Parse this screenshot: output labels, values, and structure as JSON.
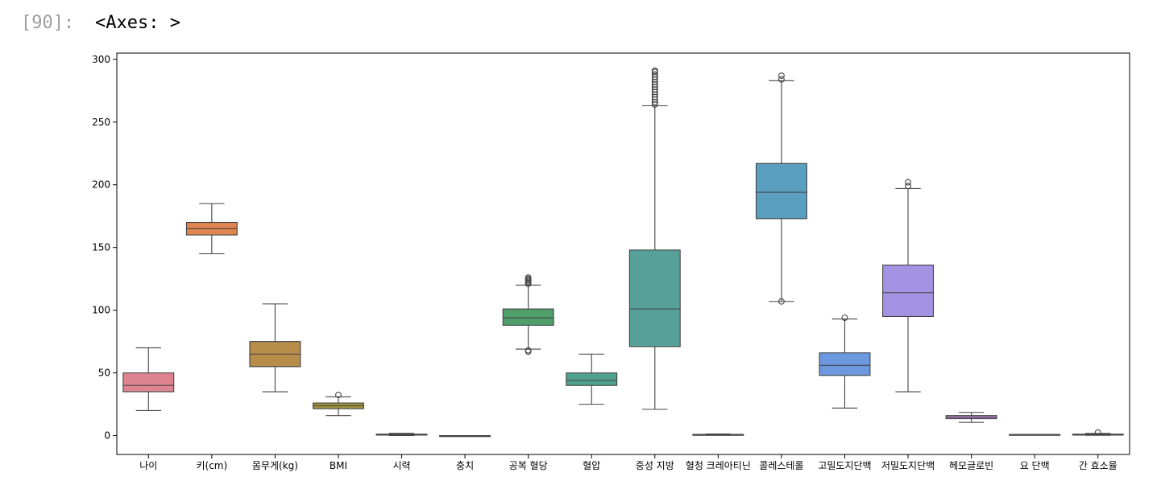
{
  "cell": {
    "prompt": "[90]:",
    "output": "<Axes: >"
  },
  "chart_data": {
    "type": "boxplot",
    "ylim": [
      -15,
      305
    ],
    "yticks": [
      0,
      50,
      100,
      150,
      200,
      250,
      300
    ],
    "grid": false,
    "categories": [
      "나이",
      "키(cm)",
      "몸무게(kg)",
      "BMI",
      "시력",
      "충치",
      "공복 혈당",
      "혈압",
      "중성 지방",
      "혈청 크레아티닌",
      "콜레스테롤",
      "고밀도지단백",
      "저밀도지단백",
      "헤모글로빈",
      "요 단백",
      "간 효소율"
    ],
    "boxes": [
      {
        "whislo": 20,
        "q1": 35,
        "med": 40,
        "q3": 50,
        "whishi": 70,
        "fliers": [],
        "color": "#dd8490"
      },
      {
        "whislo": 145,
        "q1": 160,
        "med": 165,
        "q3": 170,
        "whishi": 185,
        "fliers": [],
        "color": "#e0854f"
      },
      {
        "whislo": 35,
        "q1": 55,
        "med": 65,
        "q3": 75,
        "whishi": 105,
        "fliers": [],
        "color": "#b88d4a"
      },
      {
        "whislo": 16,
        "q1": 21.5,
        "med": 23.8,
        "q3": 26,
        "whishi": 31,
        "fliers": [
          32.5
        ],
        "color": "#a0933f"
      },
      {
        "whislo": 0.1,
        "q1": 0.8,
        "med": 1.0,
        "q3": 1.2,
        "whishi": 1.9,
        "fliers": [],
        "color": "#8a9a3e"
      },
      {
        "whislo": 0,
        "q1": 0,
        "med": 0,
        "q3": 0,
        "whishi": 0,
        "fliers": [],
        "color": "#4aa25d"
      },
      {
        "whislo": 69,
        "q1": 88,
        "med": 94,
        "q3": 101,
        "whishi": 120,
        "fliers": [
          67,
          68,
          121,
          122,
          123,
          124,
          125,
          126
        ],
        "color": "#4f9f6b"
      },
      {
        "whislo": 25,
        "q1": 40,
        "med": 44,
        "q3": 50,
        "whishi": 65,
        "fliers": [],
        "color": "#4fa18d"
      },
      {
        "whislo": 21,
        "q1": 71,
        "med": 101,
        "q3": 148,
        "whishi": 263,
        "fliers": [
          264,
          266,
          268,
          270,
          272,
          274,
          276,
          278,
          280,
          282,
          284,
          286,
          288,
          290,
          291
        ],
        "color": "#57a09a"
      },
      {
        "whislo": 0.4,
        "q1": 0.7,
        "med": 0.8,
        "q3": 1.0,
        "whishi": 1.3,
        "fliers": [],
        "color": "#56a0a9"
      },
      {
        "whislo": 107,
        "q1": 173,
        "med": 194,
        "q3": 217,
        "whishi": 283,
        "fliers": [
          107,
          284,
          287
        ],
        "color": "#5a9fbf"
      },
      {
        "whislo": 22,
        "q1": 48,
        "med": 56,
        "q3": 66,
        "whishi": 93,
        "fliers": [
          94
        ],
        "color": "#6b98de"
      },
      {
        "whislo": 35,
        "q1": 95,
        "med": 114,
        "q3": 136,
        "whishi": 197,
        "fliers": [
          199,
          202
        ],
        "color": "#a493e3"
      },
      {
        "whislo": 10.5,
        "q1": 13.5,
        "med": 14.7,
        "q3": 16,
        "whishi": 18.5,
        "fliers": [],
        "color": "#c489dd"
      },
      {
        "whislo": 1,
        "q1": 1,
        "med": 1,
        "q3": 1,
        "whishi": 1,
        "fliers": [],
        "color": "#d884c5"
      },
      {
        "whislo": 0.3,
        "q1": 0.7,
        "med": 0.9,
        "q3": 1.2,
        "whishi": 1.8,
        "fliers": [
          2.5
        ],
        "color": "#d983a8"
      }
    ]
  }
}
